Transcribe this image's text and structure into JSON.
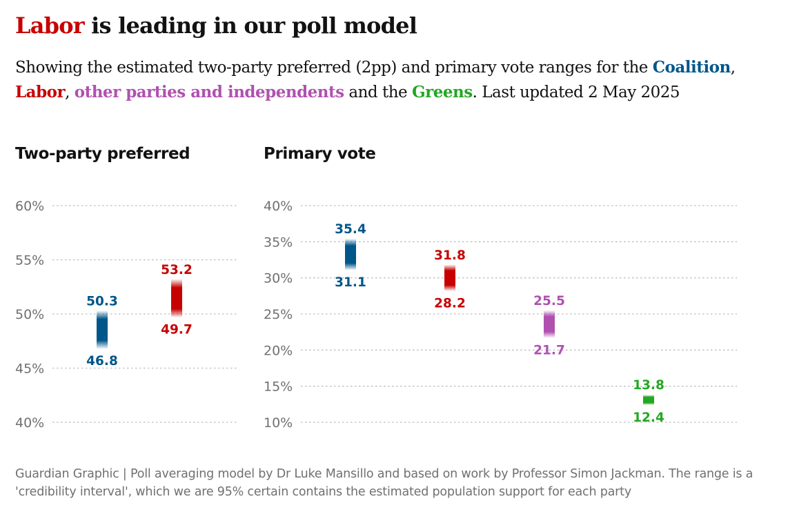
{
  "title": {
    "highlight": "Labor",
    "rest": " is leading in our poll model"
  },
  "subtitle": {
    "part1": "Showing the estimated two-party preferred (2pp) and primary vote ranges for the ",
    "coalition": "Coalition",
    "sep1": ", ",
    "labor": "Labor",
    "sep2": ", ",
    "others": "other parties and independents",
    "part2": " and the ",
    "greens": "Greens",
    "part3": ". Last updated 2 May 2025"
  },
  "colors": {
    "coalition": "#005689",
    "labor": "#c70000",
    "others": "#b051b0",
    "greens": "#22a822",
    "title_highlight": "#c70000",
    "grid": "#bdbdbd",
    "axis_text": "#707070"
  },
  "chart_data": [
    {
      "type": "range",
      "title": "Two-party preferred",
      "ylim": [
        40,
        60
      ],
      "yticks": [
        40,
        45,
        50,
        55,
        60
      ],
      "tick_labels": [
        "40%",
        "45%",
        "50%",
        "55%",
        "60%"
      ],
      "grid": true,
      "series": [
        {
          "party": "coalition",
          "low": 46.8,
          "high": 50.3,
          "low_label": "46.8",
          "high_label": "50.3"
        },
        {
          "party": "labor",
          "low": 49.7,
          "high": 53.2,
          "low_label": "49.7",
          "high_label": "53.2"
        }
      ]
    },
    {
      "type": "range",
      "title": "Primary vote",
      "ylim": [
        10,
        40
      ],
      "yticks": [
        10,
        15,
        20,
        25,
        30,
        35,
        40
      ],
      "tick_labels": [
        "10%",
        "15%",
        "20%",
        "25%",
        "30%",
        "35%",
        "40%"
      ],
      "grid": true,
      "series": [
        {
          "party": "coalition",
          "low": 31.1,
          "high": 35.4,
          "low_label": "31.1",
          "high_label": "35.4"
        },
        {
          "party": "labor",
          "low": 28.2,
          "high": 31.8,
          "low_label": "28.2",
          "high_label": "31.8"
        },
        {
          "party": "others",
          "low": 21.7,
          "high": 25.5,
          "low_label": "21.7",
          "high_label": "25.5"
        },
        {
          "party": "greens",
          "low": 12.4,
          "high": 13.8,
          "low_label": "12.4",
          "high_label": "13.8"
        }
      ]
    }
  ],
  "source": "Guardian Graphic | Poll averaging model by Dr Luke Mansillo and based on work by Professor Simon Jackman. The range is a 'credibility interval', which we are 95% certain contains the estimated population support for each party"
}
